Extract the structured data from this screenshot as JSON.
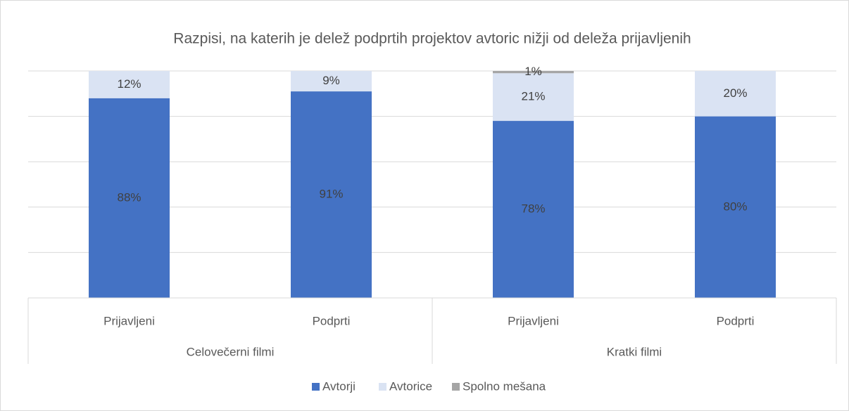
{
  "chart_data": {
    "type": "stacked_bar",
    "title": "Razpisi, na katerih je delež podprtih projektov avtoric nižji od deleža prijavljenih",
    "categories": [
      "Prijavljeni",
      "Podprti",
      "Prijavljeni",
      "Podprti"
    ],
    "category_groups": [
      "Celovečerni filmi",
      "Kratki filmi"
    ],
    "series": [
      {
        "name": "Avtorji",
        "color": "#4472c4",
        "values": [
          88,
          91,
          78,
          80
        ],
        "value_labels": [
          "88%",
          "91%",
          "78%",
          "80%"
        ]
      },
      {
        "name": "Avtorice",
        "color": "#dae3f3",
        "values": [
          12,
          9,
          21,
          20
        ],
        "value_labels": [
          "12%",
          "9%",
          "21%",
          "20%"
        ]
      },
      {
        "name": "Spolno mešana",
        "color": "#a5a5a5",
        "values": [
          null,
          null,
          1,
          null
        ],
        "value_labels": [
          null,
          null,
          "1%",
          null
        ]
      }
    ],
    "ylim": [
      0,
      100
    ],
    "yticks": [
      0,
      20,
      40,
      60,
      80,
      100
    ],
    "grid": true,
    "legend": "bottom"
  }
}
